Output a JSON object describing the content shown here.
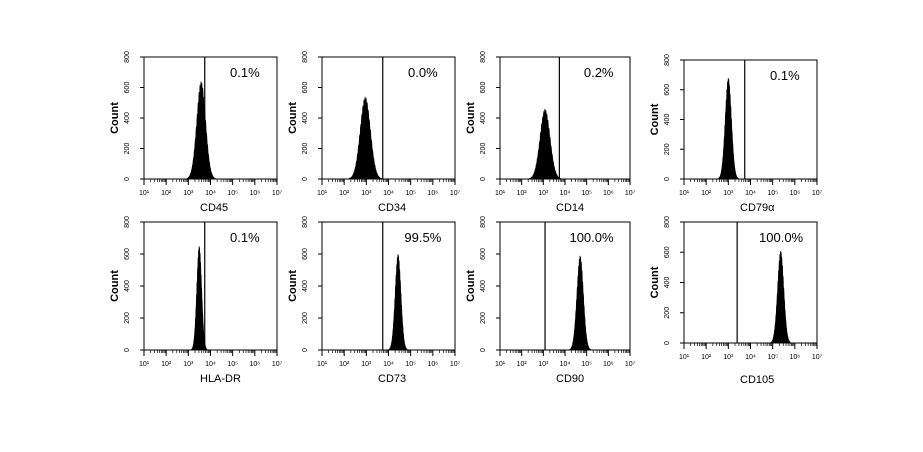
{
  "figure": {
    "y_axis_label": "Count",
    "y_ticks": [
      "0",
      "200",
      "400",
      "600",
      "800"
    ],
    "x_ticks": [
      "10¹",
      "10²",
      "10³",
      "10⁴",
      "10⁵",
      "10⁶",
      "10⁷"
    ]
  },
  "chart_data": [
    {
      "type": "histogram",
      "marker": "CD45",
      "positive_percent": "0.1%",
      "xscale": "log",
      "xlim": [
        10,
        10000000
      ],
      "ylim": [
        0,
        800
      ],
      "gate_x": 5500,
      "peak_x": 3800,
      "peak_count": 640,
      "spread_log": 0.2
    },
    {
      "type": "histogram",
      "marker": "CD34",
      "positive_percent": "0.0%",
      "xscale": "log",
      "xlim": [
        10,
        10000000
      ],
      "ylim": [
        0,
        800
      ],
      "gate_x": 5500,
      "peak_x": 900,
      "peak_count": 540,
      "spread_log": 0.23
    },
    {
      "type": "histogram",
      "marker": "CD14",
      "positive_percent": "0.2%",
      "xscale": "log",
      "xlim": [
        10,
        10000000
      ],
      "ylim": [
        0,
        800
      ],
      "gate_x": 5500,
      "peak_x": 1200,
      "peak_count": 460,
      "spread_log": 0.23
    },
    {
      "type": "histogram",
      "marker": "CD79α",
      "positive_percent": "0.1%",
      "xscale": "log",
      "xlim": [
        10,
        10000000
      ],
      "ylim": [
        0,
        800
      ],
      "gate_x": 5500,
      "peak_x": 1000,
      "peak_count": 680,
      "spread_log": 0.14
    },
    {
      "type": "histogram",
      "marker": "HLA-DR",
      "positive_percent": "0.1%",
      "xscale": "log",
      "xlim": [
        10,
        10000000
      ],
      "ylim": [
        0,
        800
      ],
      "gate_x": 5500,
      "peak_x": 3100,
      "peak_count": 650,
      "spread_log": 0.11
    },
    {
      "type": "histogram",
      "marker": "CD73",
      "positive_percent": "99.5%",
      "xscale": "log",
      "xlim": [
        10,
        10000000
      ],
      "ylim": [
        0,
        800
      ],
      "gate_x": 5500,
      "peak_x": 27000,
      "peak_count": 600,
      "spread_log": 0.13
    },
    {
      "type": "histogram",
      "marker": "CD90",
      "positive_percent": "100.0%",
      "xscale": "log",
      "xlim": [
        10,
        10000000
      ],
      "ylim": [
        0,
        800
      ],
      "gate_x": 1200,
      "peak_x": 50000,
      "peak_count": 590,
      "spread_log": 0.15
    },
    {
      "type": "histogram",
      "marker": "CD105",
      "positive_percent": "100.0%",
      "xscale": "log",
      "xlim": [
        10,
        10000000
      ],
      "ylim": [
        0,
        800
      ],
      "gate_x": 2500,
      "peak_x": 230000,
      "peak_count": 610,
      "spread_log": 0.14
    }
  ]
}
